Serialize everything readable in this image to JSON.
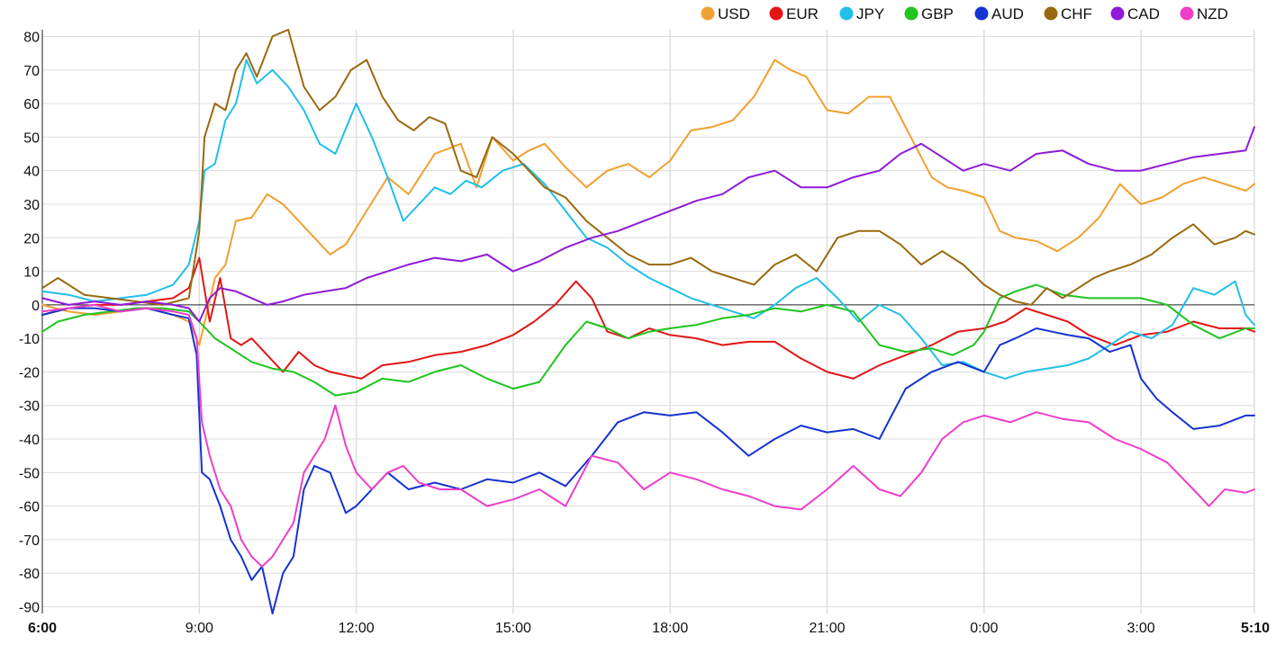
{
  "chart_data": {
    "type": "line",
    "title": "",
    "xlabel": "",
    "ylabel": "",
    "x_unit": "hours since 6:00",
    "xlim": [
      0,
      23.1667
    ],
    "ylim": [
      -92,
      82
    ],
    "grid": true,
    "legend": "top",
    "x_ticks": [
      {
        "label": "6:00",
        "x": 0,
        "bold": true
      },
      {
        "label": "9:00",
        "x": 3
      },
      {
        "label": "12:00",
        "x": 6
      },
      {
        "label": "15:00",
        "x": 9
      },
      {
        "label": "18:00",
        "x": 12
      },
      {
        "label": "21:00",
        "x": 15
      },
      {
        "label": "0:00",
        "x": 18
      },
      {
        "label": "3:00",
        "x": 21
      },
      {
        "label": "5:10",
        "x": 23.1667,
        "bold": true
      }
    ],
    "y_ticks": [
      80,
      70,
      60,
      50,
      40,
      30,
      20,
      10,
      0,
      -10,
      -20,
      -30,
      -40,
      -50,
      -60,
      -70,
      -80,
      -90
    ],
    "series": [
      {
        "name": "USD",
        "color": "#f0a030",
        "x": [
          0,
          0.5,
          1,
          1.5,
          2,
          2.5,
          2.8,
          3.0,
          3.3,
          3.5,
          3.7,
          4.0,
          4.3,
          4.6,
          4.9,
          5.2,
          5.5,
          5.8,
          6.2,
          6.6,
          7.0,
          7.5,
          8.0,
          8.3,
          8.6,
          9.0,
          9.3,
          9.6,
          10.0,
          10.4,
          10.8,
          11.2,
          11.6,
          12.0,
          12.4,
          12.8,
          13.2,
          13.6,
          14.0,
          14.3,
          14.6,
          15.0,
          15.4,
          15.8,
          16.2,
          16.6,
          17.0,
          17.3,
          17.6,
          18.0,
          18.3,
          18.6,
          19.0,
          19.4,
          19.8,
          20.2,
          20.6,
          21.0,
          21.4,
          21.8,
          22.2,
          22.6,
          23.0,
          23.1667
        ],
        "values": [
          0,
          -2,
          -3,
          -2,
          -1,
          -3,
          -5,
          -12,
          8,
          12,
          25,
          26,
          33,
          30,
          25,
          20,
          15,
          18,
          28,
          38,
          33,
          45,
          48,
          35,
          50,
          43,
          46,
          48,
          41,
          35,
          40,
          42,
          38,
          43,
          52,
          53,
          55,
          62,
          73,
          70,
          68,
          58,
          57,
          62,
          62,
          50,
          38,
          35,
          34,
          32,
          22,
          20,
          19,
          16,
          20,
          26,
          36,
          30,
          32,
          36,
          38,
          36,
          34,
          36
        ]
      },
      {
        "name": "EUR",
        "color": "#e21616",
        "x": [
          0,
          0.5,
          1,
          1.5,
          2,
          2.5,
          2.8,
          3.0,
          3.2,
          3.4,
          3.6,
          3.8,
          4.0,
          4.3,
          4.6,
          4.9,
          5.2,
          5.5,
          5.8,
          6.1,
          6.5,
          7.0,
          7.5,
          8.0,
          8.5,
          9.0,
          9.4,
          9.8,
          10.2,
          10.5,
          10.8,
          11.2,
          11.6,
          12.0,
          12.5,
          13.0,
          13.5,
          14.0,
          14.5,
          15.0,
          15.5,
          16.0,
          16.5,
          17.0,
          17.5,
          18.0,
          18.4,
          18.8,
          19.2,
          19.6,
          20.0,
          20.5,
          21.0,
          21.5,
          22.0,
          22.5,
          23.0,
          23.1667
        ],
        "values": [
          -3,
          -1,
          0,
          0,
          1,
          2,
          5,
          14,
          -5,
          8,
          -10,
          -12,
          -10,
          -15,
          -20,
          -14,
          -18,
          -20,
          -21,
          -22,
          -18,
          -17,
          -15,
          -14,
          -12,
          -9,
          -5,
          0,
          7,
          2,
          -8,
          -10,
          -7,
          -9,
          -10,
          -12,
          -11,
          -11,
          -16,
          -20,
          -22,
          -18,
          -15,
          -12,
          -8,
          -7,
          -5,
          -1,
          -3,
          -5,
          -9,
          -12,
          -9,
          -8,
          -5,
          -7,
          -7,
          -8
        ]
      },
      {
        "name": "JPY",
        "color": "#20c0e8",
        "x": [
          0,
          0.5,
          1,
          1.5,
          2,
          2.5,
          2.8,
          3.0,
          3.1,
          3.3,
          3.5,
          3.7,
          3.9,
          4.1,
          4.4,
          4.7,
          5.0,
          5.3,
          5.6,
          6.0,
          6.3,
          6.6,
          6.9,
          7.2,
          7.5,
          7.8,
          8.1,
          8.4,
          8.8,
          9.2,
          9.6,
          10.0,
          10.4,
          10.8,
          11.2,
          11.6,
          12.0,
          12.4,
          12.8,
          13.2,
          13.6,
          14.0,
          14.4,
          14.8,
          15.2,
          15.6,
          16.0,
          16.4,
          16.8,
          17.2,
          17.6,
          18.0,
          18.4,
          18.8,
          19.2,
          19.6,
          20.0,
          20.4,
          20.8,
          21.2,
          21.6,
          22.0,
          22.4,
          22.8,
          23.0,
          23.1667
        ],
        "values": [
          4,
          3,
          1,
          2,
          3,
          6,
          12,
          25,
          40,
          42,
          55,
          60,
          73,
          66,
          70,
          65,
          58,
          48,
          45,
          60,
          50,
          38,
          25,
          30,
          35,
          33,
          37,
          35,
          40,
          42,
          36,
          28,
          20,
          17,
          12,
          8,
          5,
          2,
          0,
          -2,
          -4,
          0,
          5,
          8,
          2,
          -5,
          0,
          -3,
          -10,
          -18,
          -17,
          -20,
          -22,
          -20,
          -19,
          -18,
          -16,
          -12,
          -8,
          -10,
          -6,
          5,
          3,
          7,
          -3,
          -6
        ]
      },
      {
        "name": "GBP",
        "color": "#1fc41f",
        "x": [
          0,
          0.3,
          0.8,
          1.3,
          1.8,
          2.3,
          2.8,
          3.0,
          3.3,
          3.6,
          4.0,
          4.4,
          4.8,
          5.2,
          5.6,
          6.0,
          6.5,
          7.0,
          7.5,
          8.0,
          8.5,
          9.0,
          9.5,
          10.0,
          10.4,
          10.8,
          11.2,
          11.6,
          12.0,
          12.5,
          13.0,
          13.5,
          14.0,
          14.5,
          15.0,
          15.5,
          16.0,
          16.5,
          17.0,
          17.4,
          17.8,
          18.0,
          18.3,
          18.6,
          19.0,
          19.5,
          20.0,
          20.5,
          21.0,
          21.5,
          22.0,
          22.5,
          23.0,
          23.1667
        ],
        "values": [
          -8,
          -5,
          -3,
          -2,
          -1,
          -1,
          -2,
          -5,
          -10,
          -13,
          -17,
          -19,
          -20,
          -23,
          -27,
          -26,
          -22,
          -23,
          -20,
          -18,
          -22,
          -25,
          -23,
          -12,
          -5,
          -7,
          -10,
          -8,
          -7,
          -6,
          -4,
          -3,
          -1,
          -2,
          0,
          -2,
          -12,
          -14,
          -13,
          -15,
          -12,
          -8,
          2,
          4,
          6,
          3,
          2,
          2,
          2,
          0,
          -6,
          -10,
          -7,
          -7
        ]
      },
      {
        "name": "AUD",
        "color": "#1533d1",
        "x": [
          0,
          0.5,
          1,
          1.5,
          2,
          2.5,
          2.8,
          2.95,
          3.05,
          3.2,
          3.4,
          3.6,
          3.8,
          4.0,
          4.2,
          4.4,
          4.6,
          4.8,
          5.0,
          5.2,
          5.5,
          5.8,
          6.0,
          6.3,
          6.6,
          7.0,
          7.5,
          8.0,
          8.5,
          9.0,
          9.5,
          10.0,
          10.5,
          11.0,
          11.5,
          12.0,
          12.5,
          13.0,
          13.5,
          14.0,
          14.5,
          15.0,
          15.5,
          16.0,
          16.5,
          17.0,
          17.5,
          18.0,
          18.3,
          18.6,
          19.0,
          19.3,
          19.6,
          20.0,
          20.4,
          20.8,
          21.0,
          21.3,
          21.6,
          22.0,
          22.5,
          23.0,
          23.1667
        ],
        "values": [
          -3,
          -1,
          -1,
          -2,
          -1,
          -3,
          -4,
          -15,
          -50,
          -52,
          -60,
          -70,
          -75,
          -82,
          -78,
          -92,
          -80,
          -75,
          -55,
          -48,
          -50,
          -62,
          -60,
          -55,
          -50,
          -55,
          -53,
          -55,
          -52,
          -53,
          -50,
          -54,
          -45,
          -35,
          -32,
          -33,
          -32,
          -38,
          -45,
          -40,
          -36,
          -38,
          -37,
          -40,
          -25,
          -20,
          -17,
          -20,
          -12,
          -10,
          -7,
          -8,
          -9,
          -10,
          -14,
          -12,
          -22,
          -28,
          -32,
          -37,
          -36,
          -33,
          -33
        ]
      },
      {
        "name": "CHF",
        "color": "#99690f",
        "x": [
          0,
          0.3,
          0.8,
          1.3,
          1.8,
          2.3,
          2.8,
          3.0,
          3.1,
          3.3,
          3.5,
          3.7,
          3.9,
          4.1,
          4.4,
          4.7,
          5.0,
          5.3,
          5.6,
          5.9,
          6.2,
          6.5,
          6.8,
          7.1,
          7.4,
          7.7,
          8.0,
          8.3,
          8.6,
          9.0,
          9.3,
          9.6,
          10.0,
          10.4,
          10.8,
          11.2,
          11.6,
          12.0,
          12.4,
          12.8,
          13.2,
          13.6,
          14.0,
          14.4,
          14.8,
          15.2,
          15.6,
          16.0,
          16.4,
          16.8,
          17.2,
          17.6,
          18.0,
          18.3,
          18.6,
          18.9,
          19.2,
          19.5,
          19.8,
          20.1,
          20.4,
          20.8,
          21.2,
          21.6,
          22.0,
          22.4,
          22.8,
          23.0,
          23.1667
        ],
        "values": [
          5,
          8,
          3,
          2,
          1,
          0,
          2,
          22,
          50,
          60,
          58,
          70,
          75,
          68,
          80,
          82,
          65,
          58,
          62,
          70,
          73,
          62,
          55,
          52,
          56,
          54,
          40,
          38,
          50,
          45,
          40,
          35,
          32,
          25,
          20,
          15,
          12,
          12,
          14,
          10,
          8,
          6,
          12,
          15,
          10,
          20,
          22,
          22,
          18,
          12,
          16,
          12,
          6,
          3,
          1,
          0,
          5,
          2,
          5,
          8,
          10,
          12,
          15,
          20,
          24,
          18,
          20,
          22,
          21
        ]
      },
      {
        "name": "CAD",
        "color": "#8f1ad8",
        "x": [
          0,
          0.5,
          1,
          1.5,
          2,
          2.5,
          2.8,
          3.0,
          3.2,
          3.4,
          3.7,
          4.0,
          4.3,
          4.6,
          5.0,
          5.4,
          5.8,
          6.2,
          6.6,
          7.0,
          7.5,
          8.0,
          8.5,
          9.0,
          9.5,
          10.0,
          10.5,
          11.0,
          11.5,
          12.0,
          12.5,
          13.0,
          13.5,
          14.0,
          14.5,
          15.0,
          15.5,
          16.0,
          16.4,
          16.8,
          17.2,
          17.6,
          18.0,
          18.5,
          19.0,
          19.5,
          20.0,
          20.5,
          21.0,
          21.5,
          22.0,
          22.5,
          23.0,
          23.1667
        ],
        "values": [
          2,
          0,
          1,
          0,
          1,
          0,
          -1,
          -5,
          2,
          5,
          4,
          2,
          0,
          1,
          3,
          4,
          5,
          8,
          10,
          12,
          14,
          13,
          15,
          10,
          13,
          17,
          20,
          22,
          25,
          28,
          31,
          33,
          38,
          40,
          35,
          35,
          38,
          40,
          45,
          48,
          44,
          40,
          42,
          40,
          45,
          46,
          42,
          40,
          40,
          42,
          44,
          45,
          46,
          53
        ]
      },
      {
        "name": "NZD",
        "color": "#ee3ec8",
        "x": [
          0,
          0.5,
          1,
          1.5,
          2,
          2.5,
          2.8,
          2.95,
          3.05,
          3.2,
          3.4,
          3.6,
          3.8,
          4.0,
          4.2,
          4.4,
          4.6,
          4.8,
          5.0,
          5.2,
          5.4,
          5.6,
          5.8,
          6.0,
          6.3,
          6.6,
          6.9,
          7.2,
          7.6,
          8.0,
          8.5,
          9.0,
          9.5,
          10.0,
          10.5,
          11.0,
          11.5,
          12.0,
          12.5,
          13.0,
          13.5,
          14.0,
          14.5,
          15.0,
          15.5,
          16.0,
          16.4,
          16.8,
          17.2,
          17.6,
          18.0,
          18.5,
          19.0,
          19.5,
          20.0,
          20.5,
          21.0,
          21.5,
          22.0,
          22.3,
          22.6,
          23.0,
          23.1667
        ],
        "values": [
          -2,
          -1,
          0,
          -2,
          -1,
          -2,
          -3,
          -10,
          -35,
          -45,
          -55,
          -60,
          -70,
          -75,
          -78,
          -75,
          -70,
          -65,
          -50,
          -45,
          -40,
          -30,
          -42,
          -50,
          -55,
          -50,
          -48,
          -53,
          -55,
          -55,
          -60,
          -58,
          -55,
          -60,
          -45,
          -47,
          -55,
          -50,
          -52,
          -55,
          -57,
          -60,
          -61,
          -55,
          -48,
          -55,
          -57,
          -50,
          -40,
          -35,
          -33,
          -35,
          -32,
          -34,
          -35,
          -40,
          -43,
          -47,
          -55,
          -60,
          -55,
          -56,
          -55
        ]
      }
    ]
  }
}
